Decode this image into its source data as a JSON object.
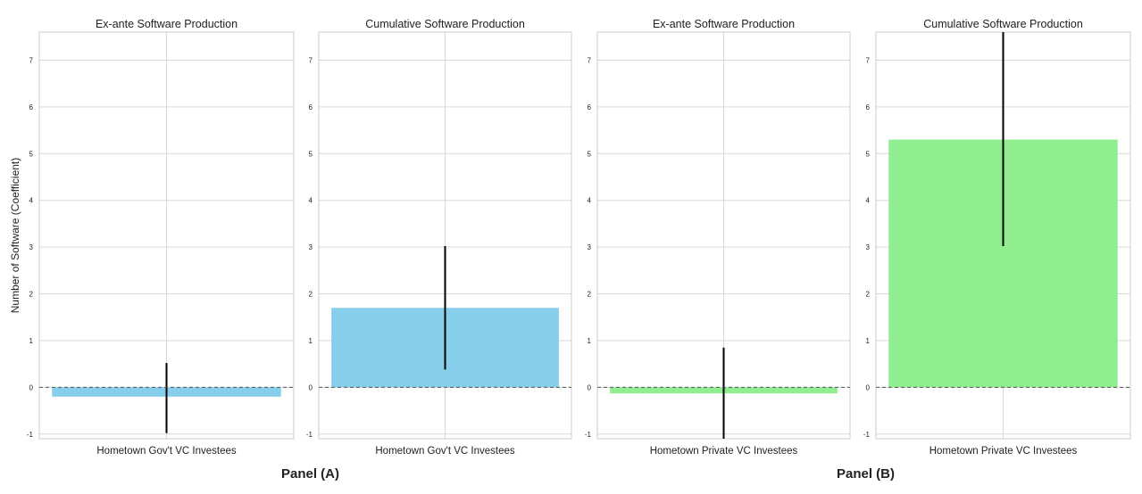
{
  "ylabel": "Number of Software (Coefficient)",
  "panel_labels": [
    "Panel (A)",
    "Panel (B)"
  ],
  "chart_data": [
    {
      "type": "bar",
      "title": "Ex-ante Software Production",
      "categories": [
        "Hometown Gov't VC Investees"
      ],
      "values": [
        -0.2
      ],
      "error_low": [
        -0.98
      ],
      "error_high": [
        0.52
      ],
      "ylabel": "Number of Software (Coefficient)",
      "ylim": [
        -1.1,
        7.6
      ],
      "yticks": [
        -1,
        0,
        1,
        2,
        3,
        4,
        5,
        6,
        7
      ],
      "color": "#87ceeb",
      "grid": true,
      "zero_line": "dashed",
      "panel": "Panel (A)"
    },
    {
      "type": "bar",
      "title": "Cumulative Software Production",
      "categories": [
        "Hometown Gov't VC Investees"
      ],
      "values": [
        1.7
      ],
      "error_low": [
        0.38
      ],
      "error_high": [
        3.02
      ],
      "ylim": [
        -1.1,
        7.6
      ],
      "yticks": [
        -1,
        0,
        1,
        2,
        3,
        4,
        5,
        6,
        7
      ],
      "color": "#87ceeb",
      "grid": true,
      "zero_line": "dashed",
      "panel": "Panel (A)"
    },
    {
      "type": "bar",
      "title": "Ex-ante Software Production",
      "categories": [
        "Hometown Private VC Investees"
      ],
      "values": [
        -0.13
      ],
      "error_low": [
        -1.1
      ],
      "error_high": [
        0.85
      ],
      "ylim": [
        -1.1,
        7.6
      ],
      "yticks": [
        -1,
        0,
        1,
        2,
        3,
        4,
        5,
        6,
        7
      ],
      "color": "#90ee90",
      "grid": true,
      "zero_line": "dashed",
      "panel": "Panel (B)"
    },
    {
      "type": "bar",
      "title": "Cumulative Software Production",
      "categories": [
        "Hometown Private VC Investees"
      ],
      "values": [
        5.3
      ],
      "error_low": [
        3.02
      ],
      "error_high": [
        7.6
      ],
      "ylim": [
        -1.1,
        7.6
      ],
      "yticks": [
        -1,
        0,
        1,
        2,
        3,
        4,
        5,
        6,
        7
      ],
      "color": "#90ee90",
      "grid": true,
      "zero_line": "dashed",
      "panel": "Panel (B)"
    }
  ]
}
